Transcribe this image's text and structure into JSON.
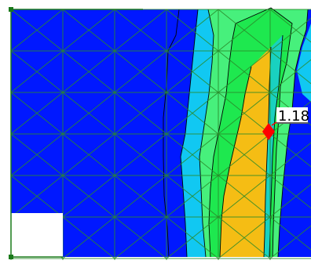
{
  "probe": {
    "value_label": "1.18",
    "marker_color": "#ff0000"
  },
  "legend_ramp": [
    "#0000ff",
    "#00aaff",
    "#00ffdd",
    "#00ff66",
    "#55ff00",
    "#ffcc00"
  ],
  "mesh": {
    "line_color": "#2a8a2a",
    "edge_color": "#1a7a1a"
  },
  "palette": {
    "background_fill": "#0018ff",
    "cyan_band": "#11c8f2",
    "light_green_band": "#47f07c",
    "green_band": "#1ee84f",
    "yellow_band": "#f5bd14",
    "contour_line": "#000000",
    "corner_cutout": "#ffffff"
  }
}
